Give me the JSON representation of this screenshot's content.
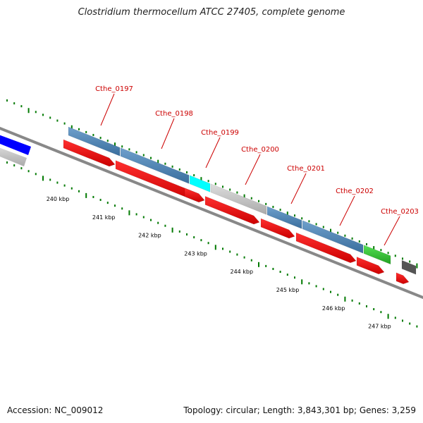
{
  "title": "Clostridium thermocellum ATCC 27405, complete genome",
  "footer": {
    "accession": "Accession: NC_009012",
    "summary": "Topology: circular; Length: 3,843,301 bp; Genes: 3,259"
  },
  "colors": {
    "cds": "#ff0000",
    "gene_blue": "#4682b4",
    "gene_cyan": "#00ffff",
    "gene_gray": "#c8c8c8",
    "gene_green": "#32cd32",
    "gene_dark": "#555555",
    "gene_navy": "#0000ff",
    "ticks": "#006400",
    "label": "#cc0000"
  },
  "gene_labels": [
    "Cthe_0197",
    "Cthe_0198",
    "Cthe_0199",
    "Cthe_0200",
    "Cthe_0201",
    "Cthe_0202",
    "Cthe_0203"
  ],
  "kbp_labels": [
    "240 kbp",
    "241 kbp",
    "242 kbp",
    "243 kbp",
    "244 kbp",
    "245 kbp",
    "246 kbp",
    "247 kbp"
  ]
}
